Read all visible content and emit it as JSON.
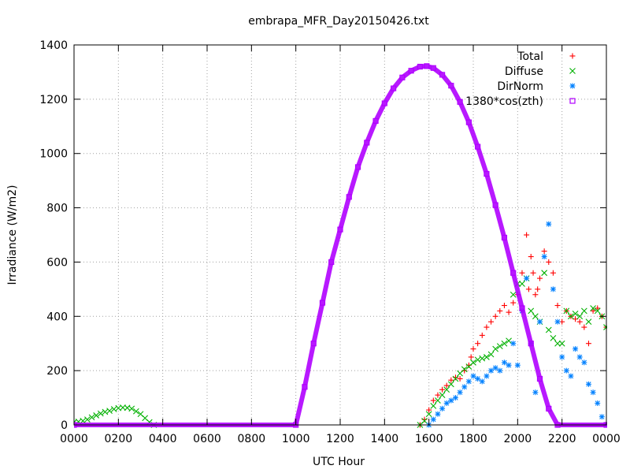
{
  "chart_data": {
    "type": "scatter",
    "title": "embrapa_MFR_Day20150426.txt",
    "xlabel": "UTC Hour",
    "ylabel": "Irradiance (W/m2)",
    "xlim": [
      0,
      24
    ],
    "ylim": [
      0,
      1400
    ],
    "xticks": [
      {
        "value": 0,
        "label": "0000"
      },
      {
        "value": 2,
        "label": "0200"
      },
      {
        "value": 4,
        "label": "0400"
      },
      {
        "value": 6,
        "label": "0600"
      },
      {
        "value": 8,
        "label": "0800"
      },
      {
        "value": 10,
        "label": "1000"
      },
      {
        "value": 12,
        "label": "1200"
      },
      {
        "value": 14,
        "label": "1400"
      },
      {
        "value": 16,
        "label": "1600"
      },
      {
        "value": 18,
        "label": "1800"
      },
      {
        "value": 20,
        "label": "2000"
      },
      {
        "value": 22,
        "label": "2200"
      },
      {
        "value": 24,
        "label": "0000"
      }
    ],
    "yticks": [
      0,
      200,
      400,
      600,
      800,
      1000,
      1200,
      1400
    ],
    "grid": true,
    "legend_position": "top-right",
    "series": [
      {
        "name": "Total",
        "color": "#ff0000",
        "marker": "plus",
        "points": [
          [
            15.6,
            0
          ],
          [
            15.8,
            20
          ],
          [
            16.0,
            55
          ],
          [
            16.2,
            90
          ],
          [
            16.4,
            110
          ],
          [
            16.6,
            130
          ],
          [
            16.8,
            145
          ],
          [
            17.0,
            165
          ],
          [
            17.2,
            175
          ],
          [
            17.4,
            170
          ],
          [
            17.6,
            200
          ],
          [
            17.8,
            220
          ],
          [
            17.9,
            250
          ],
          [
            18.0,
            280
          ],
          [
            18.2,
            300
          ],
          [
            18.4,
            330
          ],
          [
            18.6,
            360
          ],
          [
            18.8,
            380
          ],
          [
            19.0,
            400
          ],
          [
            19.2,
            420
          ],
          [
            19.4,
            440
          ],
          [
            19.6,
            415
          ],
          [
            19.8,
            450
          ],
          [
            20.0,
            480
          ],
          [
            20.2,
            560
          ],
          [
            20.4,
            700
          ],
          [
            20.5,
            500
          ],
          [
            20.6,
            620
          ],
          [
            20.7,
            560
          ],
          [
            20.8,
            480
          ],
          [
            20.9,
            500
          ],
          [
            21.0,
            540
          ],
          [
            21.2,
            640
          ],
          [
            21.4,
            600
          ],
          [
            21.6,
            560
          ],
          [
            21.8,
            440
          ],
          [
            22.0,
            380
          ],
          [
            22.2,
            420
          ],
          [
            22.4,
            400
          ],
          [
            22.6,
            390
          ],
          [
            22.8,
            380
          ],
          [
            23.0,
            360
          ],
          [
            23.2,
            300
          ],
          [
            23.4,
            420
          ],
          [
            23.6,
            430
          ],
          [
            23.8,
            400
          ],
          [
            24.0,
            360
          ]
        ]
      },
      {
        "name": "Diffuse",
        "color": "#00b000",
        "marker": "x",
        "points": [
          [
            0.0,
            10
          ],
          [
            0.2,
            12
          ],
          [
            0.4,
            15
          ],
          [
            0.6,
            20
          ],
          [
            0.8,
            28
          ],
          [
            1.0,
            35
          ],
          [
            1.2,
            42
          ],
          [
            1.4,
            48
          ],
          [
            1.6,
            52
          ],
          [
            1.8,
            58
          ],
          [
            2.0,
            62
          ],
          [
            2.2,
            64
          ],
          [
            2.4,
            63
          ],
          [
            2.6,
            60
          ],
          [
            2.8,
            50
          ],
          [
            3.0,
            40
          ],
          [
            3.2,
            25
          ],
          [
            3.4,
            10
          ],
          [
            3.6,
            0
          ],
          [
            15.6,
            0
          ],
          [
            15.8,
            15
          ],
          [
            16.0,
            40
          ],
          [
            16.2,
            70
          ],
          [
            16.4,
            90
          ],
          [
            16.6,
            110
          ],
          [
            16.8,
            130
          ],
          [
            17.0,
            150
          ],
          [
            17.2,
            170
          ],
          [
            17.4,
            190
          ],
          [
            17.6,
            205
          ],
          [
            17.8,
            215
          ],
          [
            18.0,
            230
          ],
          [
            18.2,
            240
          ],
          [
            18.4,
            245
          ],
          [
            18.6,
            250
          ],
          [
            18.8,
            260
          ],
          [
            19.0,
            280
          ],
          [
            19.2,
            290
          ],
          [
            19.4,
            300
          ],
          [
            19.6,
            310
          ],
          [
            19.8,
            480
          ],
          [
            20.0,
            520
          ],
          [
            20.2,
            520
          ],
          [
            20.4,
            540
          ],
          [
            20.6,
            420
          ],
          [
            20.8,
            400
          ],
          [
            21.0,
            380
          ],
          [
            21.2,
            560
          ],
          [
            21.4,
            350
          ],
          [
            21.6,
            320
          ],
          [
            21.8,
            300
          ],
          [
            22.0,
            300
          ],
          [
            22.2,
            420
          ],
          [
            22.4,
            400
          ],
          [
            22.6,
            410
          ],
          [
            22.8,
            400
          ],
          [
            23.0,
            420
          ],
          [
            23.2,
            380
          ],
          [
            23.4,
            430
          ],
          [
            23.6,
            420
          ],
          [
            23.8,
            400
          ],
          [
            24.0,
            360
          ]
        ]
      },
      {
        "name": "DirNorm",
        "color": "#0080ff",
        "marker": "star",
        "points": [
          [
            16.0,
            0
          ],
          [
            16.2,
            20
          ],
          [
            16.4,
            40
          ],
          [
            16.6,
            60
          ],
          [
            16.8,
            80
          ],
          [
            17.0,
            90
          ],
          [
            17.2,
            100
          ],
          [
            17.4,
            120
          ],
          [
            17.6,
            140
          ],
          [
            17.8,
            160
          ],
          [
            18.0,
            180
          ],
          [
            18.2,
            170
          ],
          [
            18.4,
            160
          ],
          [
            18.6,
            180
          ],
          [
            18.8,
            200
          ],
          [
            19.0,
            210
          ],
          [
            19.2,
            200
          ],
          [
            19.4,
            230
          ],
          [
            19.6,
            220
          ],
          [
            19.8,
            300
          ],
          [
            20.0,
            220
          ],
          [
            20.2,
            420
          ],
          [
            20.4,
            540
          ],
          [
            20.6,
            300
          ],
          [
            20.8,
            120
          ],
          [
            21.0,
            380
          ],
          [
            21.2,
            620
          ],
          [
            21.4,
            740
          ],
          [
            21.6,
            500
          ],
          [
            21.8,
            380
          ],
          [
            22.0,
            250
          ],
          [
            22.2,
            200
          ],
          [
            22.4,
            180
          ],
          [
            22.6,
            280
          ],
          [
            22.8,
            250
          ],
          [
            23.0,
            230
          ],
          [
            23.2,
            150
          ],
          [
            23.4,
            120
          ],
          [
            23.6,
            80
          ],
          [
            23.8,
            30
          ],
          [
            24.0,
            0
          ]
        ]
      },
      {
        "name": "1380*cos(zth)",
        "color": "#b000ff",
        "marker": "square",
        "points": [
          [
            0,
            0
          ],
          [
            10.0,
            0
          ],
          [
            10.4,
            140
          ],
          [
            10.8,
            300
          ],
          [
            11.2,
            450
          ],
          [
            11.6,
            600
          ],
          [
            12.0,
            720
          ],
          [
            12.4,
            840
          ],
          [
            12.8,
            950
          ],
          [
            13.2,
            1040
          ],
          [
            13.6,
            1120
          ],
          [
            14.0,
            1185
          ],
          [
            14.4,
            1240
          ],
          [
            14.8,
            1280
          ],
          [
            15.2,
            1305
          ],
          [
            15.6,
            1320
          ],
          [
            15.9,
            1322
          ],
          [
            16.2,
            1315
          ],
          [
            16.6,
            1290
          ],
          [
            17.0,
            1250
          ],
          [
            17.4,
            1190
          ],
          [
            17.8,
            1115
          ],
          [
            18.2,
            1025
          ],
          [
            18.6,
            925
          ],
          [
            19.0,
            810
          ],
          [
            19.4,
            690
          ],
          [
            19.8,
            560
          ],
          [
            20.2,
            430
          ],
          [
            20.6,
            300
          ],
          [
            21.0,
            170
          ],
          [
            21.4,
            60
          ],
          [
            21.8,
            0
          ],
          [
            24.0,
            0
          ]
        ]
      }
    ]
  }
}
